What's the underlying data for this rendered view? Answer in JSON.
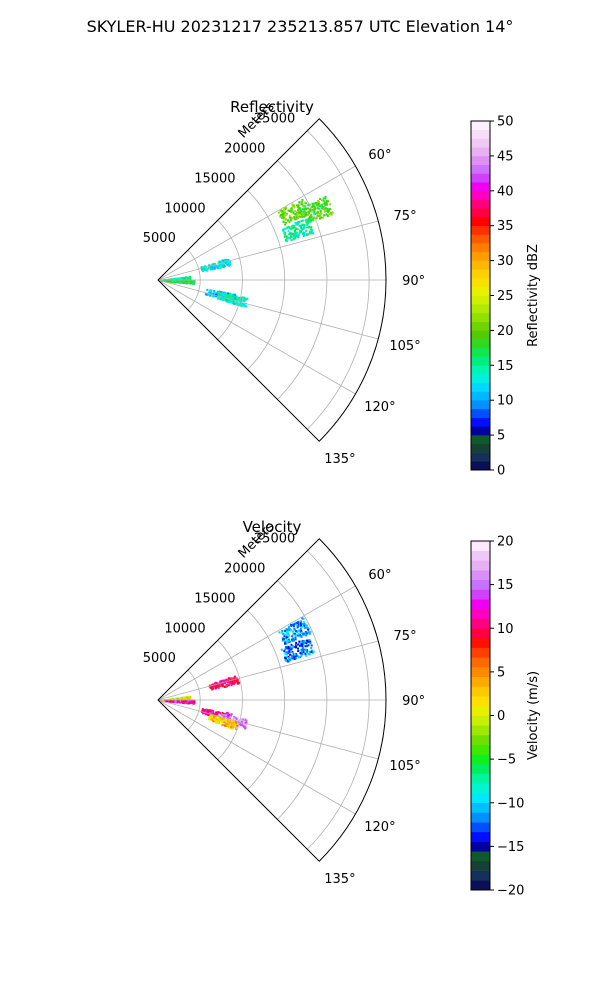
{
  "figure": {
    "suptitle": "SKYLER-HU  20231217  235213.857 UTC Elevation 14°"
  },
  "chart_data": [
    {
      "type": "heatmap",
      "projection": "polar-sector",
      "title": "Reflectivity",
      "r_axis_label": "Meters",
      "r_ticks": [
        5000,
        10000,
        15000,
        20000,
        25000
      ],
      "r_tick_labels": [
        "5000",
        "10000",
        "15000",
        "20000",
        "25000"
      ],
      "rlim": [
        0,
        27000
      ],
      "theta_lim_deg": [
        45,
        135
      ],
      "theta_ticks_deg": [
        60,
        75,
        90,
        105,
        120,
        135
      ],
      "theta_tick_labels": [
        "60°",
        "75°",
        "90°",
        "105°",
        "120°",
        "135°"
      ],
      "grid": true,
      "colorbar": {
        "label": "Reflectivity dBZ",
        "min": 0,
        "max": 50,
        "ticks": [
          0,
          5,
          10,
          15,
          20,
          25,
          30,
          35,
          40,
          45,
          50
        ],
        "tick_labels": [
          "0",
          "5",
          "10",
          "15",
          "20",
          "25",
          "30",
          "35",
          "40",
          "45",
          "50"
        ]
      },
      "echo_regions": [
        {
          "az_deg": 63,
          "r_m": 18000,
          "value": 20
        },
        {
          "az_deg": 66,
          "r_m": 20500,
          "value": 19
        },
        {
          "az_deg": 70,
          "r_m": 17500,
          "value": 15
        },
        {
          "az_deg": 75,
          "r_m": 7000,
          "value": 13
        },
        {
          "az_deg": 85,
          "r_m": 2000,
          "value": 15
        },
        {
          "az_deg": 92,
          "r_m": 2500,
          "value": 17
        },
        {
          "az_deg": 103,
          "r_m": 7500,
          "value": 11
        },
        {
          "az_deg": 104,
          "r_m": 9000,
          "value": 14
        }
      ]
    },
    {
      "type": "heatmap",
      "projection": "polar-sector",
      "title": "Velocity",
      "r_axis_label": "Meters",
      "r_ticks": [
        5000,
        10000,
        15000,
        20000,
        25000
      ],
      "r_tick_labels": [
        "5000",
        "10000",
        "15000",
        "20000",
        "25000"
      ],
      "rlim": [
        0,
        27000
      ],
      "theta_lim_deg": [
        45,
        135
      ],
      "theta_ticks_deg": [
        60,
        75,
        90,
        105,
        120,
        135
      ],
      "theta_tick_labels": [
        "60°",
        "75°",
        "90°",
        "105°",
        "120°",
        "135°"
      ],
      "grid": true,
      "colorbar": {
        "label": "Velocity (m/s)",
        "min": -20,
        "max": 20,
        "ticks": [
          -20,
          -15,
          -10,
          -5,
          0,
          5,
          10,
          15,
          20
        ],
        "tick_labels": [
          "−20",
          "−15",
          "−10",
          "−5",
          "0",
          "5",
          "10",
          "15",
          "20"
        ]
      },
      "echo_regions": [
        {
          "az_deg": 63,
          "r_m": 18000,
          "value": -11
        },
        {
          "az_deg": 70,
          "r_m": 17500,
          "value": -12
        },
        {
          "az_deg": 75,
          "r_m": 8000,
          "value": 10
        },
        {
          "az_deg": 85,
          "r_m": 2000,
          "value": 0
        },
        {
          "az_deg": 92,
          "r_m": 2500,
          "value": 12
        },
        {
          "az_deg": 103,
          "r_m": 7000,
          "value": 11
        },
        {
          "az_deg": 105,
          "r_m": 9000,
          "value": 16
        },
        {
          "az_deg": 108,
          "r_m": 8000,
          "value": 3
        }
      ]
    }
  ]
}
